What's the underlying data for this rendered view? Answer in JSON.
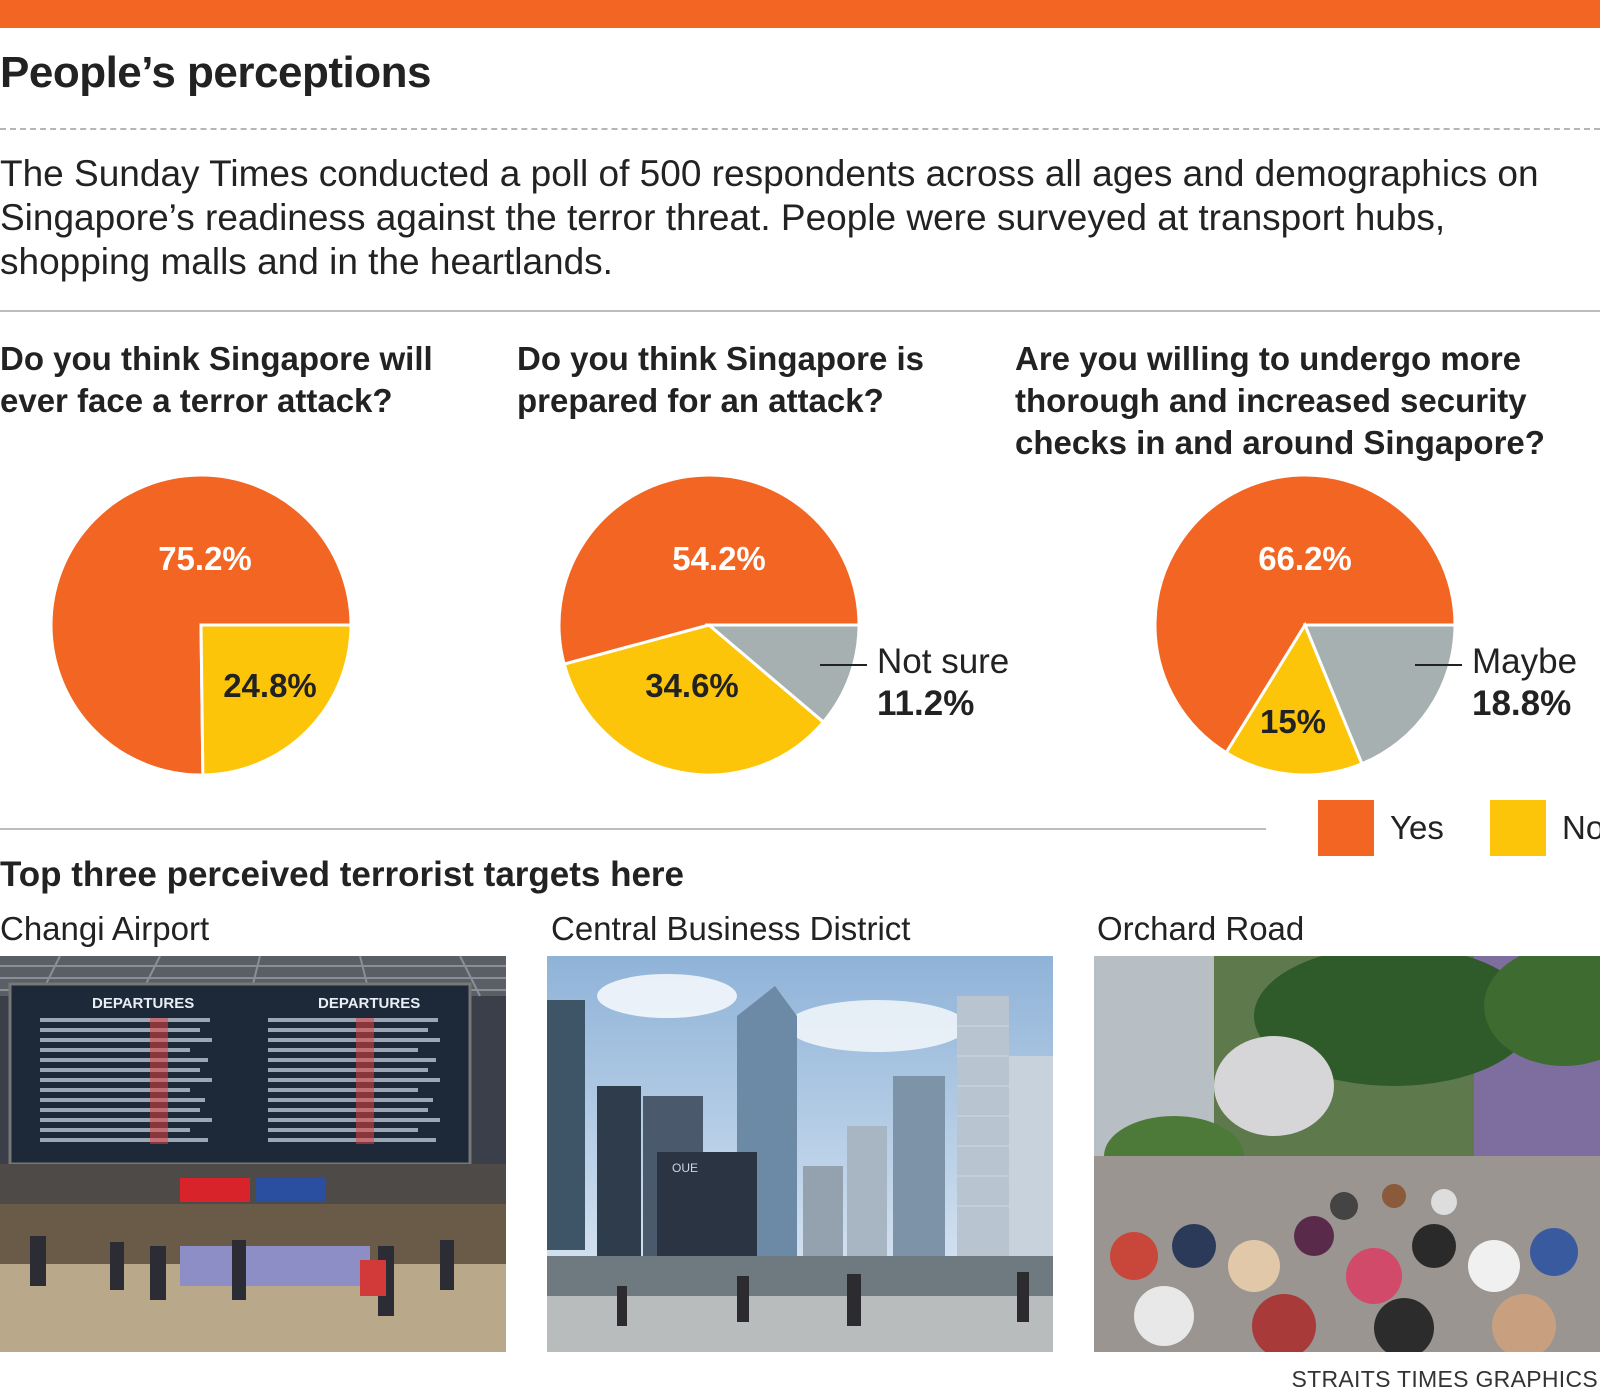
{
  "header": {
    "title": "People’s perceptions",
    "intro": "The Sunday Times conducted a poll of 500 respondents across all ages and demographics on Singapore’s readiness against the terror threat. People were surveyed at transport hubs, shopping malls and in the heartlands."
  },
  "colors": {
    "yes": "#f26522",
    "no": "#fdc50a",
    "other": "#a7b0b0",
    "accent": "#f26522"
  },
  "chart_data": [
    {
      "type": "pie",
      "title": "Do you think Singapore will ever face a terror attack?",
      "labels": [
        "Yes",
        "No"
      ],
      "values": [
        75.2,
        24.8
      ],
      "value_labels": [
        "75.2%",
        "24.8%"
      ]
    },
    {
      "type": "pie",
      "title": "Do you think Singapore is prepared for an attack?",
      "labels": [
        "Yes",
        "No",
        "Not sure"
      ],
      "values": [
        54.2,
        34.6,
        11.2
      ],
      "value_labels": [
        "54.2%",
        "34.6%",
        "11.2%"
      ]
    },
    {
      "type": "pie",
      "title": "Are you willing to undergo more thorough and increased security checks in and around Singapore?",
      "labels": [
        "Yes",
        "No",
        "Maybe"
      ],
      "values": [
        66.2,
        15,
        18.8
      ],
      "value_labels": [
        "66.2%",
        "15%",
        "18.8%"
      ]
    }
  ],
  "legend": {
    "yes": "Yes",
    "no": "No"
  },
  "targets": {
    "title": "Top three perceived terrorist targets here",
    "items": [
      {
        "caption": "Changi Airport",
        "sign1": "DEPARTURES",
        "sign2": "DEPARTURES"
      },
      {
        "caption": "Central Business District",
        "sign": "OUE"
      },
      {
        "caption": "Orchard Road"
      }
    ]
  },
  "credit": "STRAITS TIMES GRAPHICS"
}
